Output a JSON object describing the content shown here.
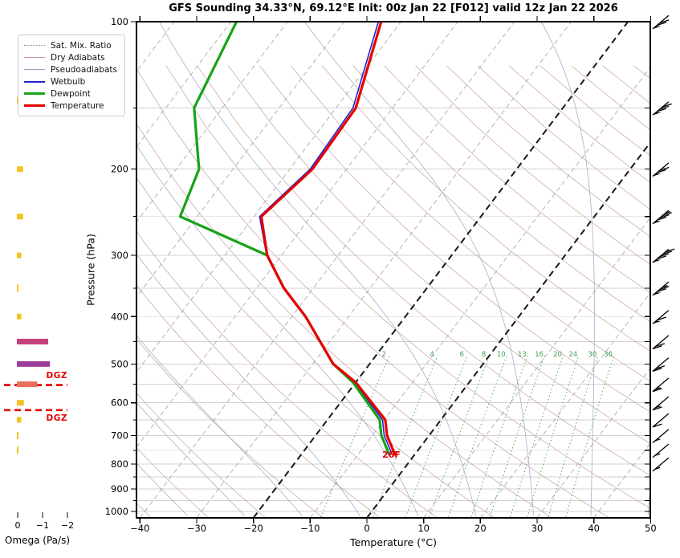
{
  "title": "GFS Sounding 34.33°N, 69.12°E Init: 00z Jan 22 [F012] valid 12z Jan 22 2026",
  "axes": {
    "pressure_label": "Pressure (hPa)",
    "temp_label": "Temperature (°C)",
    "omega_label": "Omega (Pa/s)",
    "pressure_ticks": [
      100,
      200,
      300,
      400,
      500,
      600,
      700,
      800,
      900,
      1000
    ],
    "pressure_minor_step": 50,
    "temp_ticks": [
      -40,
      -30,
      -20,
      -10,
      0,
      10,
      20,
      30,
      40,
      50
    ],
    "omega_ticks": [
      0,
      -1,
      -2
    ]
  },
  "legend": [
    {
      "label": "Sat. Mix. Ratio",
      "color": "#888888",
      "style": "dotted",
      "px": 1.5
    },
    {
      "label": "Dry Adiabats",
      "color": "#c89494",
      "style": "solid",
      "px": 1.2
    },
    {
      "label": "Pseudoadiabats",
      "color": "#9aa0c8",
      "style": "solid",
      "px": 1.2
    },
    {
      "label": "Wetbulb",
      "color": "#2222cc",
      "style": "solid",
      "px": 2
    },
    {
      "label": "Dewpoint",
      "color": "#17a317",
      "style": "solid",
      "px": 3.5
    },
    {
      "label": "Temperature",
      "color": "#e60000",
      "style": "solid",
      "px": 3.5
    }
  ],
  "chart_data": {
    "type": "skewt-logp-sounding",
    "pressure_range_hpa": [
      100,
      1043
    ],
    "temperature_axis_c": [
      -40,
      50
    ],
    "gridlines_hpa_step": 50,
    "temperature_profile": [
      {
        "p": 765,
        "t": -3.5
      },
      {
        "p": 700,
        "t": -7.4
      },
      {
        "p": 650,
        "t": -9.8
      },
      {
        "p": 545,
        "t": -20.0
      },
      {
        "p": 500,
        "t": -26.4
      },
      {
        "p": 400,
        "t": -37.6
      },
      {
        "p": 350,
        "t": -45.2
      },
      {
        "p": 300,
        "t": -52.5
      },
      {
        "p": 250,
        "t": -58.7
      },
      {
        "p": 200,
        "t": -56.0
      },
      {
        "p": 150,
        "t": -56.5
      },
      {
        "p": 100,
        "t": -63.5
      }
    ],
    "dewpoint_profile": [
      {
        "p": 765,
        "t": -4.5
      },
      {
        "p": 700,
        "t": -8.4
      },
      {
        "p": 650,
        "t": -10.8
      },
      {
        "p": 545,
        "t": -20.5
      },
      {
        "p": 500,
        "t": -26.4
      },
      {
        "p": 400,
        "t": -37.6
      },
      {
        "p": 350,
        "t": -45.2
      },
      {
        "p": 300,
        "t": -52.5
      },
      {
        "p": 250,
        "t": -73.0
      },
      {
        "p": 200,
        "t": -76.0
      },
      {
        "p": 150,
        "t": -85.0
      },
      {
        "p": 100,
        "t": -89.0
      }
    ],
    "wetbulb_profile": [
      {
        "p": 765,
        "t": -4.0
      },
      {
        "p": 700,
        "t": -7.9
      },
      {
        "p": 650,
        "t": -10.3
      },
      {
        "p": 545,
        "t": -20.2
      },
      {
        "p": 500,
        "t": -26.5
      },
      {
        "p": 400,
        "t": -37.7
      },
      {
        "p": 350,
        "t": -45.3
      },
      {
        "p": 300,
        "t": -52.6
      },
      {
        "p": 250,
        "t": -59.0
      },
      {
        "p": 200,
        "t": -56.4
      },
      {
        "p": 150,
        "t": -57.0
      },
      {
        "p": 100,
        "t": -64.0
      }
    ],
    "surface_temp_label": "26F",
    "dgz": {
      "label": "DGZ",
      "pressures": [
        552,
        621
      ]
    },
    "wind_barbs": [
      {
        "p": 100,
        "kt": 70
      },
      {
        "p": 150,
        "kt": 80
      },
      {
        "p": 200,
        "kt": 70
      },
      {
        "p": 250,
        "kt": 85
      },
      {
        "p": 300,
        "kt": 90
      },
      {
        "p": 350,
        "kt": 75
      },
      {
        "p": 400,
        "kt": 60
      },
      {
        "p": 450,
        "kt": 20
      },
      {
        "p": 500,
        "kt": 20
      },
      {
        "p": 550,
        "kt": 15
      },
      {
        "p": 600,
        "kt": 15
      },
      {
        "p": 650,
        "kt": 10
      },
      {
        "p": 700,
        "kt": 5
      },
      {
        "p": 750,
        "kt": 5
      },
      {
        "p": 800,
        "kt": 5
      }
    ],
    "omega_bars": [
      {
        "p": 145,
        "value": -0.05,
        "color": "#f3c321"
      },
      {
        "p": 200,
        "value": -0.25,
        "color": "#f3c321"
      },
      {
        "p": 250,
        "value": -0.25,
        "color": "#f3c321"
      },
      {
        "p": 300,
        "value": -0.18,
        "color": "#f3c321"
      },
      {
        "p": 350,
        "value": -0.05,
        "color": "#f3c321"
      },
      {
        "p": 400,
        "value": -0.18,
        "color": "#f3c321"
      },
      {
        "p": 450,
        "value": -1.26,
        "color": "#c4417c"
      },
      {
        "p": 500,
        "value": -1.33,
        "color": "#9c3f9c"
      },
      {
        "p": 550,
        "value": -0.82,
        "color": "#e8705a"
      },
      {
        "p": 600,
        "value": -0.28,
        "color": "#f3c321"
      },
      {
        "p": 650,
        "value": -0.18,
        "color": "#f3c321"
      },
      {
        "p": 700,
        "value": -0.05,
        "color": "#f3c321"
      },
      {
        "p": 750,
        "value": -0.05,
        "color": "#f3c321"
      }
    ],
    "mixing_ratio_labels_gkg": [
      2,
      4,
      6,
      8,
      10,
      13,
      16,
      20,
      24,
      30,
      36
    ],
    "isotherms": {
      "start": -110,
      "end": 40,
      "step": 10,
      "highlight": [
        -20,
        0
      ],
      "color": "#9a9a9a",
      "highlight_color": "#1a1a1a"
    },
    "dry_adiabats": {
      "start": -40,
      "end": 220,
      "step": 10
    },
    "pseudoadiabats": {
      "start": -60,
      "end": 50,
      "step": 10
    }
  }
}
